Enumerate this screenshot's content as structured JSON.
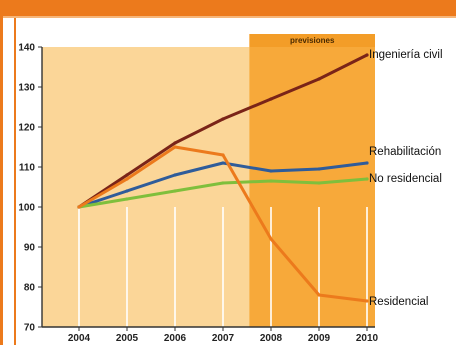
{
  "chart_data": {
    "type": "line",
    "title": "",
    "xlabel": "",
    "ylabel": "",
    "x": [
      "2004",
      "2005",
      "2006",
      "2007",
      "2008",
      "2009",
      "2010"
    ],
    "ylim": [
      70,
      140
    ],
    "yticks": [
      70,
      80,
      90,
      100,
      110,
      120,
      130,
      140
    ],
    "grid": "vertical",
    "legend": "direct labels at line ends",
    "forecast_region": {
      "label": "previsiones",
      "from": 2007.55,
      "to": 2010.2
    },
    "series": [
      {
        "name": "Ingeniería civil",
        "color": "#7a2418",
        "points": [
          [
            2004,
            100
          ],
          [
            2005,
            108
          ],
          [
            2006,
            116
          ],
          [
            2007,
            122
          ],
          [
            2008,
            127
          ],
          [
            2009,
            132
          ],
          [
            2010,
            138
          ]
        ]
      },
      {
        "name": "Rehabilitación",
        "color": "#2f5c9a",
        "points": [
          [
            2004,
            100
          ],
          [
            2005,
            104
          ],
          [
            2006,
            108
          ],
          [
            2007,
            111
          ],
          [
            2008,
            109
          ],
          [
            2009,
            109.5
          ],
          [
            2010,
            111
          ]
        ]
      },
      {
        "name": "No residencial",
        "color": "#7fbf3c",
        "points": [
          [
            2004,
            100
          ],
          [
            2005,
            102
          ],
          [
            2006,
            104
          ],
          [
            2007,
            106
          ],
          [
            2008,
            106.5
          ],
          [
            2009,
            106
          ],
          [
            2010,
            107
          ]
        ]
      },
      {
        "name": "Residencial",
        "color": "#ec7a1c",
        "points": [
          [
            2004,
            100
          ],
          [
            2005,
            107
          ],
          [
            2006,
            115
          ],
          [
            2007,
            113
          ],
          [
            2008,
            92
          ],
          [
            2009,
            78
          ],
          [
            2010,
            76.5
          ]
        ]
      }
    ]
  }
}
